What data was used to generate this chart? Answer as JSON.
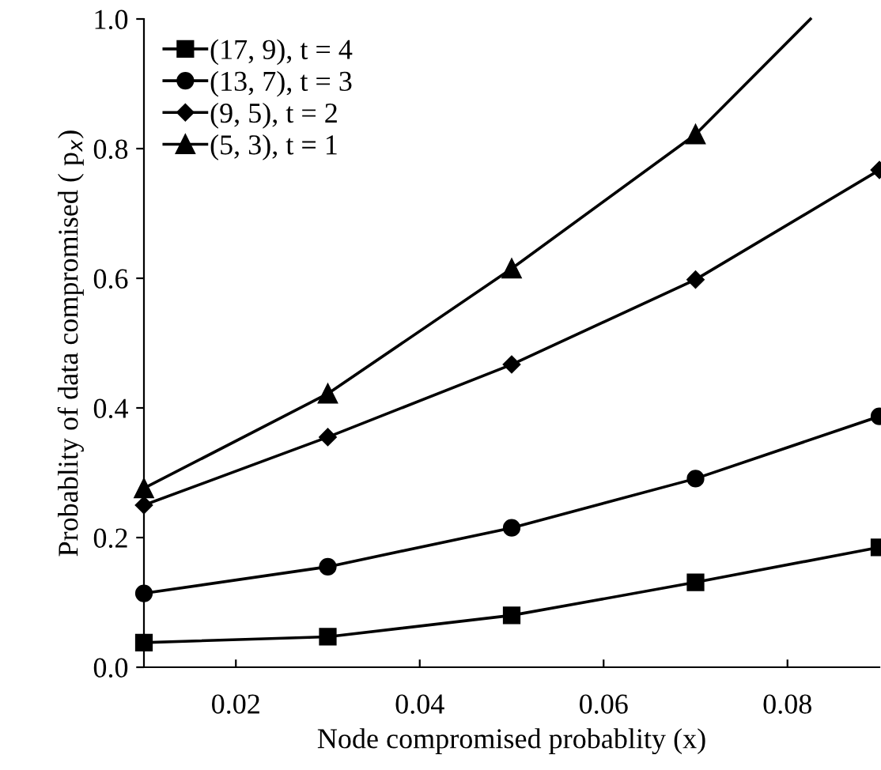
{
  "chart_data": {
    "type": "line",
    "xlabel": "Node compromised probablity (x)",
    "ylabel": "Probablity of data compromised ( p$_{x}$)",
    "x": [
      0.01,
      0.03,
      0.05,
      0.07,
      0.09
    ],
    "series": [
      {
        "name": "(17, 9), t = 4",
        "color": "#000000",
        "marker": "square",
        "values": [
          0.038,
          0.047,
          0.08,
          0.131,
          0.185
        ]
      },
      {
        "name": "(13, 7), t = 3",
        "color": "#000000",
        "marker": "circle",
        "values": [
          0.114,
          0.155,
          0.215,
          0.291,
          0.387
        ]
      },
      {
        "name": "(9, 5), t = 2",
        "color": "#000000",
        "marker": "diamond",
        "values": [
          0.25,
          0.355,
          0.467,
          0.598,
          0.767
        ]
      },
      {
        "name": "(5, 3), t = 1",
        "color": "#000000",
        "marker": "triangle",
        "x": [
          0.01,
          0.03,
          0.05,
          0.07,
          0.0825
        ],
        "values": [
          0.276,
          0.422,
          0.615,
          0.822,
          1.0
        ]
      }
    ],
    "xlim": [
      0.01,
      0.09
    ],
    "xticks": [
      0.02,
      0.04,
      0.06,
      0.08
    ],
    "ylim": [
      0,
      1.0
    ],
    "yticks": [
      {
        "value": 0,
        "label": "0.0"
      },
      {
        "value": 0.2,
        "label": "0.2"
      },
      {
        "value": 0.4,
        "label": "0.4"
      },
      {
        "value": 0.6,
        "label": "0.6"
      },
      {
        "value": 0.8,
        "label": "0.8"
      },
      {
        "value": 1.0,
        "label": "1.0"
      }
    ],
    "grid": false,
    "legend": "top left",
    "line_style": "solid"
  }
}
